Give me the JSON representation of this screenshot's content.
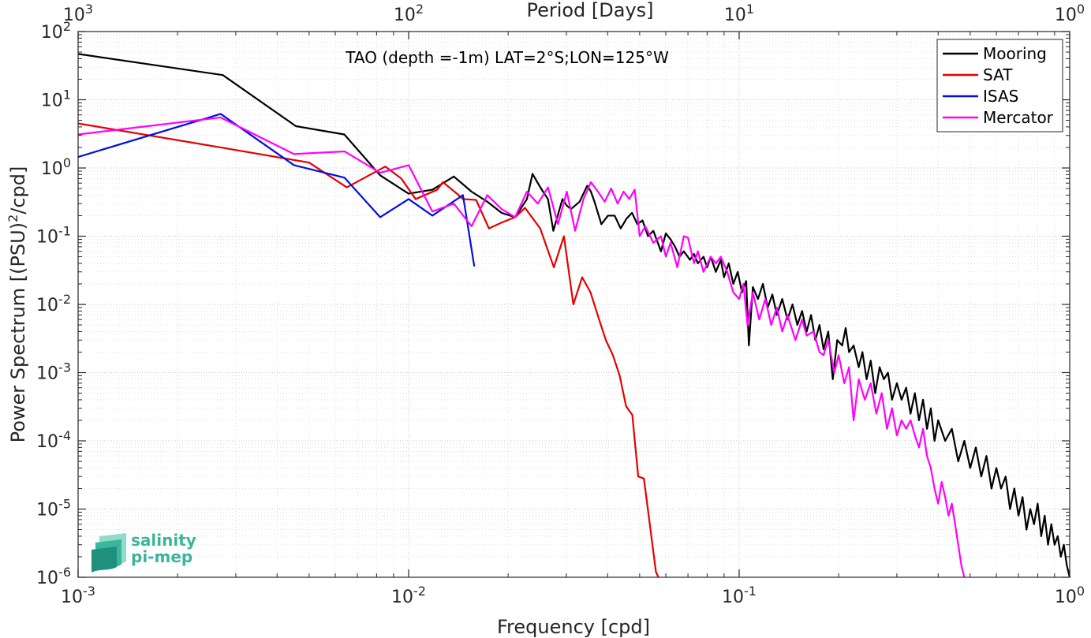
{
  "chart_data": {
    "type": "line",
    "annotation": "TAO (depth =-1m) LAT=2°S;LON=125°W",
    "xlabel": "Frequency [cpd]",
    "ylabel": "Power Spectrum [(PSU)^2/cpd]",
    "ylabel_parts": {
      "prefix": "Power Spectrum [(PSU)",
      "sup": "2",
      "suffix": "/cpd]"
    },
    "top_xlabel": "Period [Days]",
    "x_scale": "log",
    "y_scale": "log",
    "xlim": [
      0.001,
      1
    ],
    "ylim": [
      1e-06,
      100
    ],
    "x_ticks": [
      {
        "value": 0.001,
        "base": "10",
        "exp": "-3"
      },
      {
        "value": 0.01,
        "base": "10",
        "exp": "-2"
      },
      {
        "value": 0.1,
        "base": "10",
        "exp": "-1"
      },
      {
        "value": 1,
        "base": "10",
        "exp": "0"
      }
    ],
    "y_ticks": [
      {
        "value": 1e-06,
        "base": "10",
        "exp": "-6"
      },
      {
        "value": 1e-05,
        "base": "10",
        "exp": "-5"
      },
      {
        "value": 0.0001,
        "base": "10",
        "exp": "-4"
      },
      {
        "value": 0.001,
        "base": "10",
        "exp": "-3"
      },
      {
        "value": 0.01,
        "base": "10",
        "exp": "-2"
      },
      {
        "value": 0.1,
        "base": "10",
        "exp": "-1"
      },
      {
        "value": 1,
        "base": "10",
        "exp": "0"
      },
      {
        "value": 10,
        "base": "10",
        "exp": "1"
      },
      {
        "value": 100,
        "base": "10",
        "exp": "2"
      }
    ],
    "top_ticks": [
      {
        "period": 1000,
        "base": "10",
        "exp": "3"
      },
      {
        "period": 100,
        "base": "10",
        "exp": "2"
      },
      {
        "period": 10,
        "base": "10",
        "exp": "1"
      },
      {
        "period": 1,
        "base": "10",
        "exp": "0"
      }
    ],
    "grid": true,
    "minor_grid": true,
    "legend_position": "top-right",
    "series": [
      {
        "name": "Mooring",
        "color": "#000000",
        "points": [
          [
            0.001,
            47
          ],
          [
            0.00274,
            23
          ],
          [
            0.00456,
            4.1
          ],
          [
            0.00639,
            3.1
          ],
          [
            0.0082,
            0.78
          ],
          [
            0.01,
            0.42
          ],
          [
            0.0118,
            0.48
          ],
          [
            0.0137,
            0.75
          ],
          [
            0.0155,
            0.45
          ],
          [
            0.0173,
            0.32
          ],
          [
            0.0191,
            0.22
          ],
          [
            0.021,
            0.19
          ],
          [
            0.0228,
            0.35
          ],
          [
            0.0237,
            0.82
          ],
          [
            0.0246,
            0.6
          ],
          [
            0.0255,
            0.45
          ],
          [
            0.0264,
            0.35
          ],
          [
            0.0274,
            0.12
          ],
          [
            0.0292,
            0.35
          ],
          [
            0.0301,
            0.28
          ],
          [
            0.031,
            0.25
          ],
          [
            0.0329,
            0.32
          ],
          [
            0.0347,
            0.55
          ],
          [
            0.0356,
            0.45
          ],
          [
            0.0365,
            0.32
          ],
          [
            0.0383,
            0.15
          ],
          [
            0.0401,
            0.2
          ],
          [
            0.042,
            0.2
          ],
          [
            0.0438,
            0.13
          ],
          [
            0.0456,
            0.18
          ],
          [
            0.0474,
            0.22
          ],
          [
            0.0492,
            0.15
          ],
          [
            0.051,
            0.17
          ],
          [
            0.053,
            0.1
          ],
          [
            0.055,
            0.12
          ],
          [
            0.058,
            0.06
          ],
          [
            0.06,
            0.11
          ],
          [
            0.062,
            0.09
          ],
          [
            0.064,
            0.07
          ],
          [
            0.066,
            0.05
          ],
          [
            0.068,
            0.06
          ],
          [
            0.071,
            0.045
          ],
          [
            0.073,
            0.055
          ],
          [
            0.075,
            0.04
          ],
          [
            0.078,
            0.05
          ],
          [
            0.08,
            0.035
          ],
          [
            0.082,
            0.05
          ],
          [
            0.085,
            0.03
          ],
          [
            0.088,
            0.045
          ],
          [
            0.09,
            0.025
          ],
          [
            0.093,
            0.04
          ],
          [
            0.096,
            0.02
          ],
          [
            0.099,
            0.03
          ],
          [
            0.102,
            0.015
          ],
          [
            0.105,
            0.022
          ],
          [
            0.107,
            0.0025
          ],
          [
            0.11,
            0.018
          ],
          [
            0.114,
            0.012
          ],
          [
            0.118,
            0.02
          ],
          [
            0.122,
            0.009
          ],
          [
            0.126,
            0.014
          ],
          [
            0.13,
            0.007
          ],
          [
            0.135,
            0.012
          ],
          [
            0.14,
            0.006
          ],
          [
            0.145,
            0.01
          ],
          [
            0.15,
            0.005
          ],
          [
            0.155,
            0.008
          ],
          [
            0.16,
            0.004
          ],
          [
            0.165,
            0.007
          ],
          [
            0.17,
            0.003
          ],
          [
            0.175,
            0.005
          ],
          [
            0.18,
            0.0022
          ],
          [
            0.186,
            0.004
          ],
          [
            0.192,
            0.0008
          ],
          [
            0.198,
            0.003
          ],
          [
            0.205,
            0.0025
          ],
          [
            0.21,
            0.0045
          ],
          [
            0.215,
            0.002
          ],
          [
            0.222,
            0.0025
          ],
          [
            0.23,
            0.0012
          ],
          [
            0.236,
            0.002
          ],
          [
            0.243,
            0.0008
          ],
          [
            0.25,
            0.0015
          ],
          [
            0.258,
            0.0005
          ],
          [
            0.266,
            0.0012
          ],
          [
            0.274,
            0.0008
          ],
          [
            0.282,
            0.001
          ],
          [
            0.29,
            0.0004
          ],
          [
            0.3,
            0.0007
          ],
          [
            0.31,
            0.0004
          ],
          [
            0.32,
            0.0006
          ],
          [
            0.33,
            0.00025
          ],
          [
            0.34,
            0.0005
          ],
          [
            0.35,
            0.0002
          ],
          [
            0.36,
            0.0004
          ],
          [
            0.37,
            0.00015
          ],
          [
            0.38,
            0.0003
          ],
          [
            0.39,
            0.0001
          ],
          [
            0.4,
            0.0002
          ],
          [
            0.42,
            0.0001
          ],
          [
            0.44,
            0.00015
          ],
          [
            0.46,
            5e-05
          ],
          [
            0.48,
            0.0001
          ],
          [
            0.5,
            4e-05
          ],
          [
            0.52,
            8e-05
          ],
          [
            0.54,
            3e-05
          ],
          [
            0.56,
            6e-05
          ],
          [
            0.58,
            2e-05
          ],
          [
            0.6,
            4e-05
          ],
          [
            0.62,
            2e-05
          ],
          [
            0.64,
            3e-05
          ],
          [
            0.66,
            1e-05
          ],
          [
            0.68,
            2e-05
          ],
          [
            0.7,
            8e-06
          ],
          [
            0.72,
            1.5e-05
          ],
          [
            0.74,
            5e-06
          ],
          [
            0.76,
            1e-05
          ],
          [
            0.78,
            6e-06
          ],
          [
            0.8,
            1.2e-05
          ],
          [
            0.82,
            4e-06
          ],
          [
            0.84,
            8e-06
          ],
          [
            0.86,
            3e-06
          ],
          [
            0.88,
            6e-06
          ],
          [
            0.9,
            3e-06
          ],
          [
            0.92,
            4e-06
          ],
          [
            0.94,
            2e-06
          ],
          [
            0.96,
            3e-06
          ],
          [
            0.98,
            1.5e-06
          ],
          [
            1.0,
            1e-06
          ]
        ]
      },
      {
        "name": "SAT",
        "color": "#e50000",
        "points": [
          [
            0.001,
            4.5
          ],
          [
            0.0027,
            2.0
          ],
          [
            0.005,
            1.2
          ],
          [
            0.0065,
            0.52
          ],
          [
            0.0085,
            1.05
          ],
          [
            0.0095,
            0.7
          ],
          [
            0.0105,
            0.35
          ],
          [
            0.0122,
            0.48
          ],
          [
            0.0127,
            0.62
          ],
          [
            0.014,
            0.42
          ],
          [
            0.0146,
            0.35
          ],
          [
            0.016,
            0.34
          ],
          [
            0.0175,
            0.13
          ],
          [
            0.0192,
            0.16
          ],
          [
            0.021,
            0.19
          ],
          [
            0.0225,
            0.26
          ],
          [
            0.025,
            0.13
          ],
          [
            0.0275,
            0.035
          ],
          [
            0.0295,
            0.1
          ],
          [
            0.0315,
            0.01
          ],
          [
            0.0335,
            0.025
          ],
          [
            0.0355,
            0.015
          ],
          [
            0.0375,
            0.0065
          ],
          [
            0.0395,
            0.003
          ],
          [
            0.0415,
            0.0018
          ],
          [
            0.0435,
            0.0009
          ],
          [
            0.0455,
            0.00032
          ],
          [
            0.0475,
            0.00024
          ],
          [
            0.0495,
            3e-05
          ],
          [
            0.0515,
            2.8e-05
          ],
          [
            0.056,
            1.2e-06
          ],
          [
            0.057,
            1e-06
          ]
        ]
      },
      {
        "name": "ISAS",
        "color": "#0010e0",
        "points": [
          [
            0.001,
            1.45
          ],
          [
            0.0027,
            6.2
          ],
          [
            0.0045,
            1.1
          ],
          [
            0.0064,
            0.72
          ],
          [
            0.0082,
            0.19
          ],
          [
            0.01,
            0.35
          ],
          [
            0.0118,
            0.2
          ],
          [
            0.0146,
            0.4
          ],
          [
            0.0158,
            0.036
          ]
        ]
      },
      {
        "name": "Mercator",
        "color": "#ff00ff",
        "points": [
          [
            0.001,
            3.1
          ],
          [
            0.0027,
            5.5
          ],
          [
            0.0045,
            1.6
          ],
          [
            0.0064,
            1.75
          ],
          [
            0.0082,
            0.85
          ],
          [
            0.01,
            1.1
          ],
          [
            0.0118,
            0.23
          ],
          [
            0.0137,
            0.3
          ],
          [
            0.0155,
            0.14
          ],
          [
            0.0173,
            0.4
          ],
          [
            0.0191,
            0.25
          ],
          [
            0.021,
            0.19
          ],
          [
            0.0228,
            0.45
          ],
          [
            0.0246,
            0.3
          ],
          [
            0.0264,
            0.52
          ],
          [
            0.0283,
            0.15
          ],
          [
            0.0301,
            0.45
          ],
          [
            0.0319,
            0.12
          ],
          [
            0.0338,
            0.35
          ],
          [
            0.0356,
            0.62
          ],
          [
            0.0374,
            0.45
          ],
          [
            0.0392,
            0.32
          ],
          [
            0.041,
            0.5
          ],
          [
            0.0429,
            0.3
          ],
          [
            0.0447,
            0.45
          ],
          [
            0.0465,
            0.35
          ],
          [
            0.0483,
            0.48
          ],
          [
            0.05,
            0.1
          ],
          [
            0.052,
            0.14
          ],
          [
            0.055,
            0.08
          ],
          [
            0.058,
            0.1
          ],
          [
            0.06,
            0.05
          ],
          [
            0.062,
            0.08
          ],
          [
            0.065,
            0.035
          ],
          [
            0.068,
            0.1
          ],
          [
            0.07,
            0.095
          ],
          [
            0.073,
            0.04
          ],
          [
            0.075,
            0.06
          ],
          [
            0.078,
            0.03
          ],
          [
            0.082,
            0.05
          ],
          [
            0.085,
            0.04
          ],
          [
            0.088,
            0.05
          ],
          [
            0.092,
            0.03
          ],
          [
            0.096,
            0.015
          ],
          [
            0.1,
            0.012
          ],
          [
            0.103,
            0.02
          ],
          [
            0.106,
            0.005
          ],
          [
            0.11,
            0.015
          ],
          [
            0.115,
            0.006
          ],
          [
            0.12,
            0.012
          ],
          [
            0.125,
            0.005
          ],
          [
            0.13,
            0.009
          ],
          [
            0.135,
            0.004
          ],
          [
            0.14,
            0.007
          ],
          [
            0.148,
            0.003
          ],
          [
            0.155,
            0.006
          ],
          [
            0.16,
            0.0035
          ],
          [
            0.168,
            0.004
          ],
          [
            0.175,
            0.002
          ],
          [
            0.18,
            0.0018
          ],
          [
            0.186,
            0.003
          ],
          [
            0.194,
            0.001
          ],
          [
            0.2,
            0.0018
          ],
          [
            0.208,
            0.0007
          ],
          [
            0.215,
            0.0012
          ],
          [
            0.222,
            0.0002
          ],
          [
            0.23,
            0.0008
          ],
          [
            0.24,
            0.0004
          ],
          [
            0.25,
            0.0007
          ],
          [
            0.26,
            0.00025
          ],
          [
            0.27,
            0.0005
          ],
          [
            0.28,
            0.00015
          ],
          [
            0.29,
            0.0003
          ],
          [
            0.3,
            0.00012
          ],
          [
            0.31,
            0.0002
          ],
          [
            0.32,
            0.00015
          ],
          [
            0.33,
            0.0002
          ],
          [
            0.34,
            0.00012
          ],
          [
            0.35,
            8e-05
          ],
          [
            0.36,
            0.00015
          ],
          [
            0.37,
            6e-05
          ],
          [
            0.38,
            4e-05
          ],
          [
            0.39,
            2e-05
          ],
          [
            0.4,
            1.2e-05
          ],
          [
            0.41,
            2.5e-05
          ],
          [
            0.42,
            1.5e-05
          ],
          [
            0.43,
            8e-06
          ],
          [
            0.44,
            1.2e-05
          ],
          [
            0.45,
            6e-06
          ],
          [
            0.46,
            3e-06
          ],
          [
            0.47,
            1.5e-06
          ],
          [
            0.48,
            1e-06
          ]
        ]
      }
    ]
  },
  "logo": {
    "line1": "salinity",
    "line2": "pi-mep",
    "color_light": "#8fdcc8",
    "color_mid": "#3bb59c",
    "color_dark": "#1f8f7e"
  }
}
